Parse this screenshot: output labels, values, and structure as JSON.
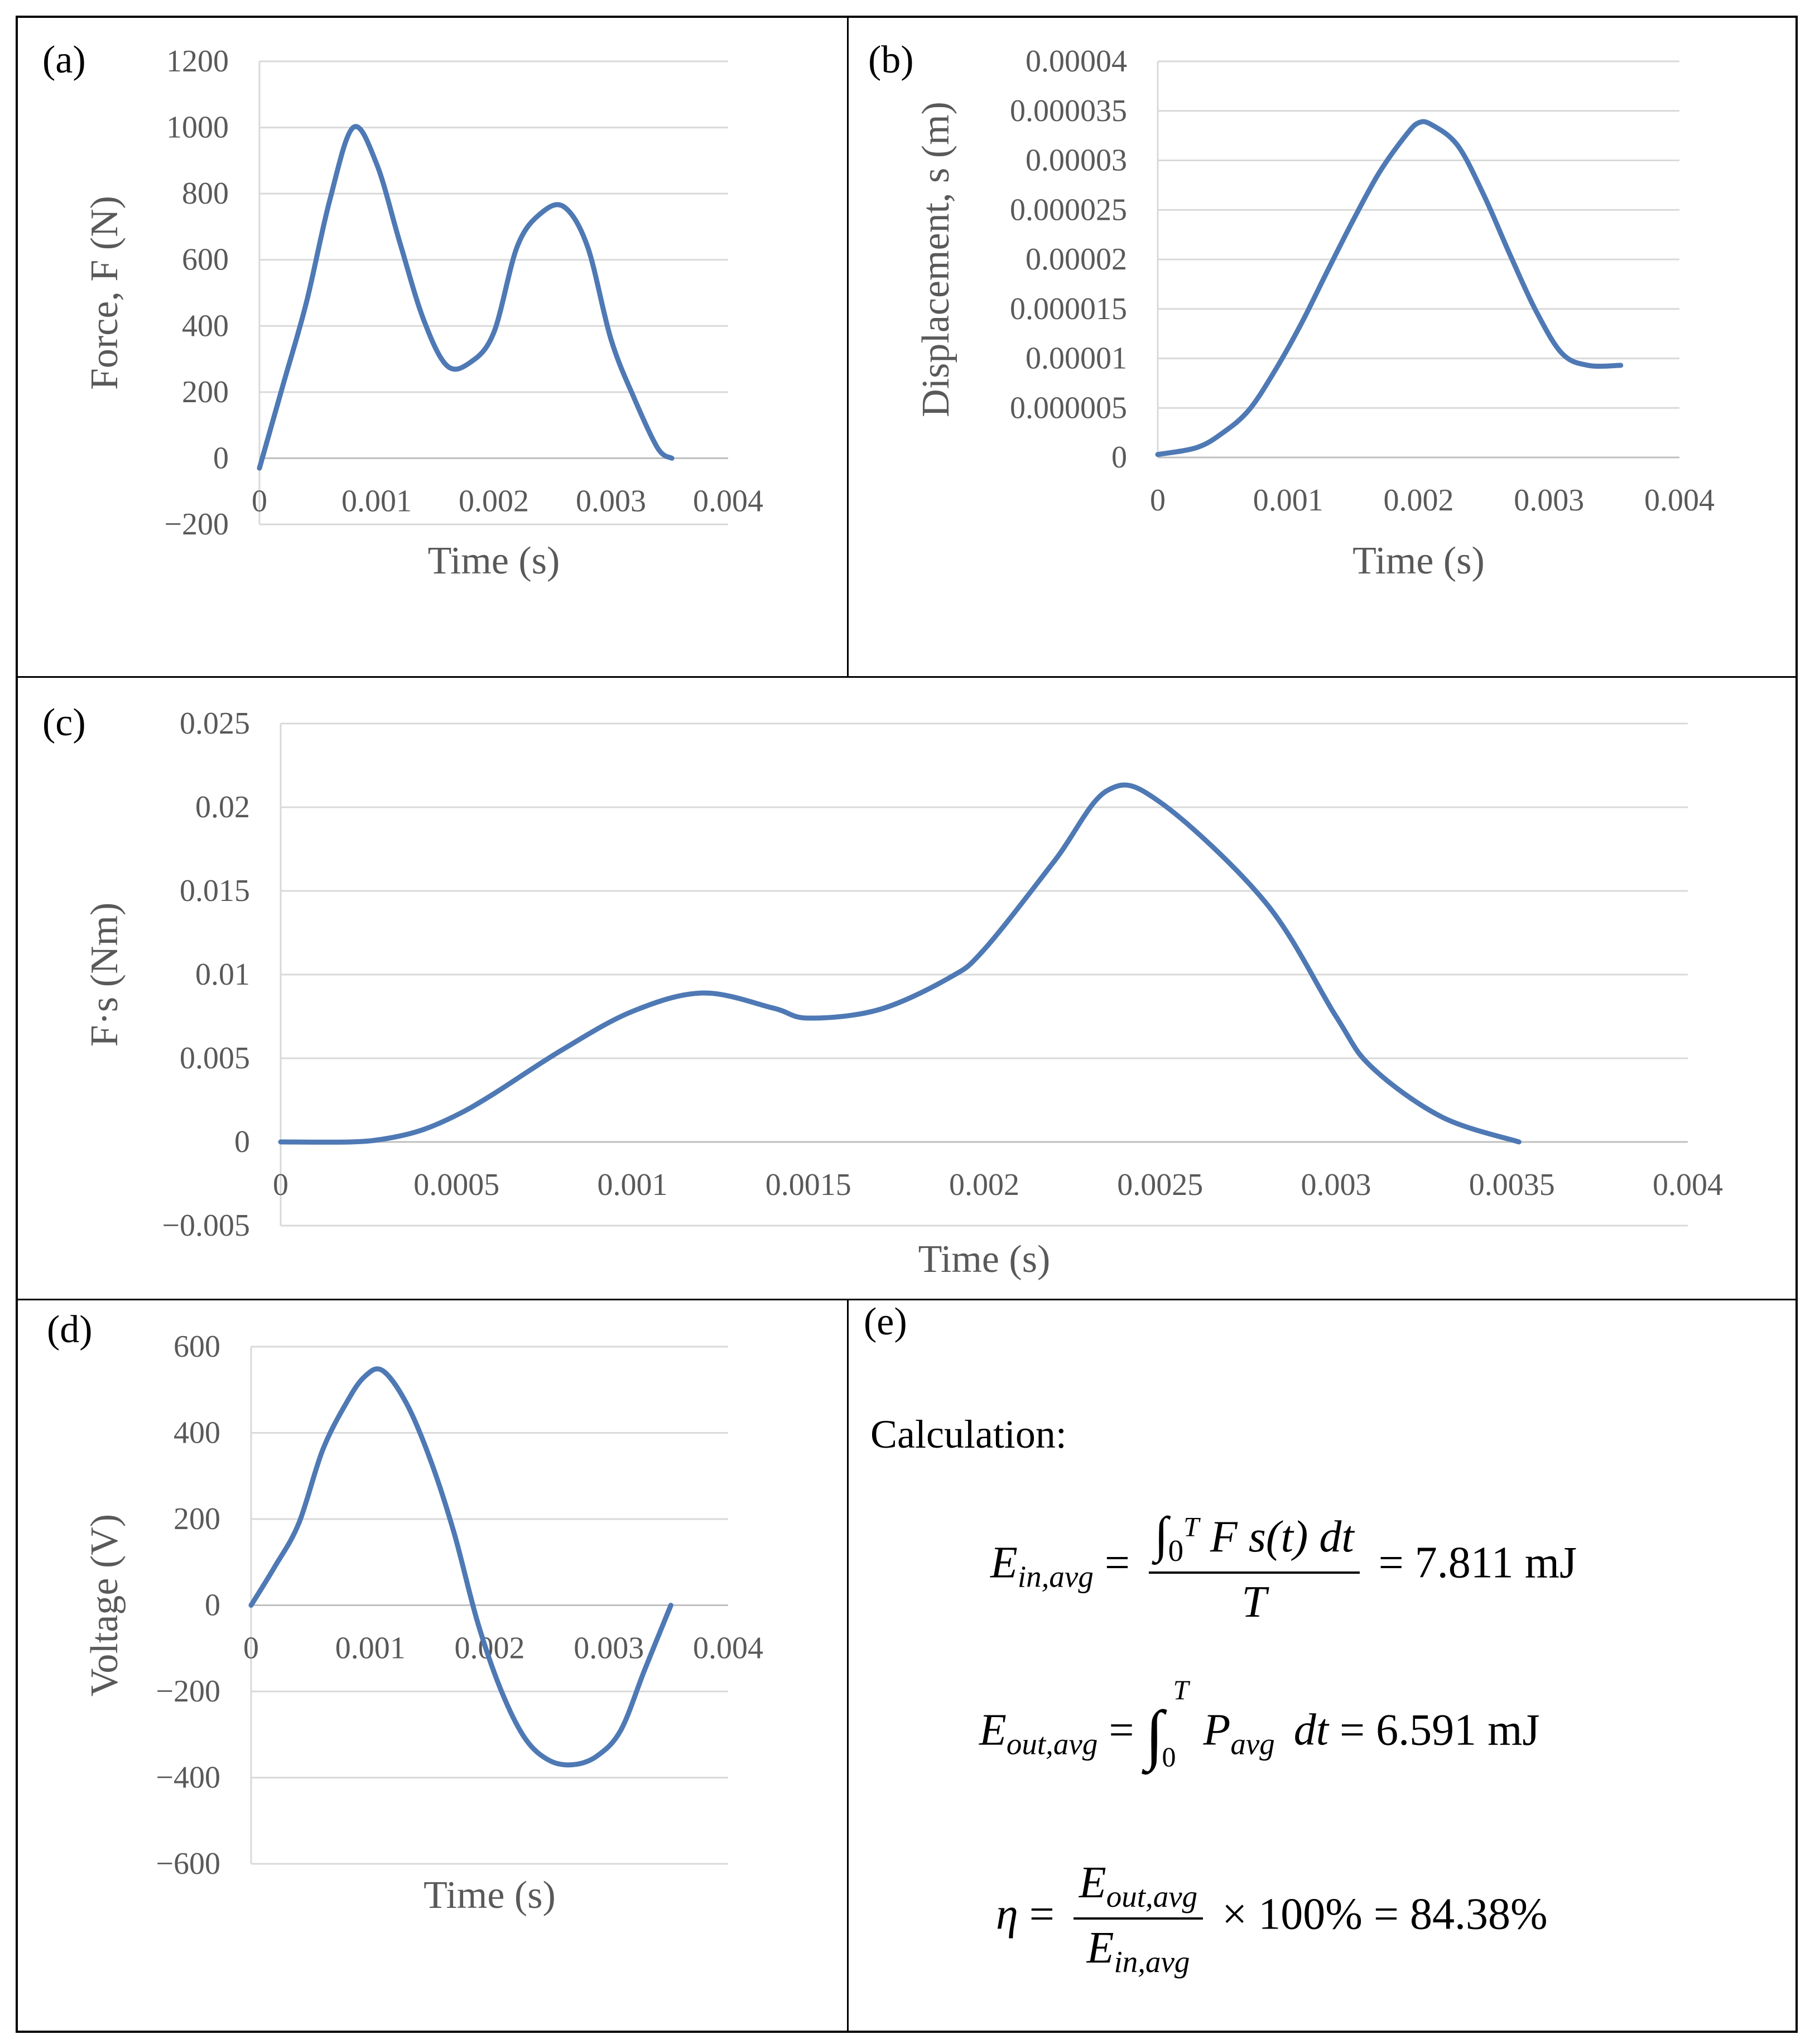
{
  "panels": {
    "a": "(a)",
    "b": "(b)",
    "c": "(c)",
    "d": "(d)",
    "e": "(e)"
  },
  "calculation": {
    "heading": "Calculation:",
    "ein_lhs": "E",
    "ein_sub": "in,avg",
    "ein_num": "F s(t) dt",
    "ein_den": "T",
    "ein_result": "= 7.811 mJ",
    "eout_lhs": "E",
    "eout_sub": "out,avg",
    "eout_integrand": "P",
    "eout_integrand_sub": "avg",
    "eout_dt": "dt",
    "eout_result": "= 6.591 mJ",
    "eta_lhs": "η",
    "eta_num": "E",
    "eta_num_sub": "out,avg",
    "eta_den": "E",
    "eta_den_sub": "in,avg",
    "eta_result": "× 100% = 84.38%",
    "limit_top": "T",
    "limit_bottom": "0"
  },
  "chart_data": [
    {
      "id": "a",
      "type": "line",
      "title": "",
      "xlabel": "Time (s)",
      "ylabel": "Force, F (N)",
      "xlim": [
        0,
        0.004
      ],
      "ylim": [
        -200,
        1200
      ],
      "xticks": [
        0,
        0.001,
        0.002,
        0.003,
        0.004
      ],
      "xtick_labels": [
        "0",
        "0.001",
        "0.002",
        "0.003",
        "0.004"
      ],
      "yticks": [
        -200,
        0,
        200,
        400,
        600,
        800,
        1000,
        1200
      ],
      "ytick_labels": [
        "−200",
        "0",
        "200",
        "400",
        "600",
        "800",
        "1000",
        "1200"
      ],
      "grid": true,
      "color": "#4e79b4",
      "series": [
        {
          "name": "Force",
          "x": [
            0,
            0.0002,
            0.0004,
            0.0006,
            0.0008,
            0.001,
            0.0012,
            0.0014,
            0.0016,
            0.0018,
            0.002,
            0.0022,
            0.0024,
            0.0026,
            0.0028,
            0.003,
            0.0032,
            0.0034,
            0.00352
          ],
          "y": [
            -30,
            220,
            470,
            780,
            1000,
            890,
            650,
            420,
            280,
            290,
            380,
            640,
            740,
            760,
            640,
            360,
            180,
            30,
            0
          ]
        }
      ]
    },
    {
      "id": "b",
      "type": "line",
      "title": "",
      "xlabel": "Time (s)",
      "ylabel": "Displacement, s (m)",
      "xlim": [
        0,
        0.004
      ],
      "ylim": [
        0,
        4e-05
      ],
      "xticks": [
        0,
        0.001,
        0.002,
        0.003,
        0.004
      ],
      "xtick_labels": [
        "0",
        "0.001",
        "0.002",
        "0.003",
        "0.004"
      ],
      "yticks": [
        0,
        5e-06,
        1e-05,
        1.5e-05,
        2e-05,
        2.5e-05,
        3e-05,
        3.5e-05,
        4e-05
      ],
      "ytick_labels": [
        "0",
        "0.000005",
        "0.00001",
        "0.000015",
        "0.00002",
        "0.000025",
        "0.00003",
        "0.000035",
        "0.00004"
      ],
      "grid": true,
      "color": "#4e79b4",
      "series": [
        {
          "name": "Displacement",
          "x": [
            0,
            0.0003,
            0.0005,
            0.0007,
            0.0009,
            0.0011,
            0.0013,
            0.0015,
            0.0017,
            0.0019,
            0.002,
            0.0021,
            0.0023,
            0.0025,
            0.0027,
            0.0029,
            0.0031,
            0.0033,
            0.00355
          ],
          "y": [
            3e-07,
            1e-06,
            2.5e-06,
            4.8e-06,
            8.8e-06,
            1.35e-05,
            1.88e-05,
            2.4e-05,
            2.88e-05,
            3.25e-05,
            3.38e-05,
            3.36e-05,
            3.15e-05,
            2.65e-05,
            2.05e-05,
            1.48e-05,
            1.05e-05,
            9.3e-06,
            9.3e-06
          ]
        }
      ]
    },
    {
      "id": "c",
      "type": "line",
      "title": "",
      "xlabel": "Time (s)",
      "ylabel": "F·s (Nm)",
      "xlim": [
        0,
        0.004
      ],
      "ylim": [
        -0.005,
        0.025
      ],
      "xticks": [
        0,
        0.0005,
        0.001,
        0.0015,
        0.002,
        0.0025,
        0.003,
        0.0035,
        0.004
      ],
      "xtick_labels": [
        "0",
        "0.0005",
        "0.001",
        "0.0015",
        "0.002",
        "0.0025",
        "0.003",
        "0.0035",
        "0.004"
      ],
      "yticks": [
        -0.005,
        0,
        0.005,
        0.01,
        0.015,
        0.02,
        0.025
      ],
      "ytick_labels": [
        "−0.005",
        "0",
        "0.005",
        "0.01",
        "0.015",
        "0.02",
        "0.025"
      ],
      "grid": true,
      "color": "#4e79b4",
      "series": [
        {
          "name": "F·s",
          "x": [
            0,
            0.0002,
            0.0003,
            0.0004,
            0.0005,
            0.0006,
            0.0008,
            0.001,
            0.0012,
            0.0014,
            0.0015,
            0.0017,
            0.0019,
            0.002,
            0.0022,
            0.00235,
            0.0025,
            0.0028,
            0.003,
            0.0031,
            0.0033,
            0.00352
          ],
          "y": [
            0,
            0,
            0.0002,
            0.0007,
            0.0016,
            0.0028,
            0.0055,
            0.0078,
            0.0089,
            0.008,
            0.0074,
            0.0079,
            0.0098,
            0.0115,
            0.0168,
            0.021,
            0.0203,
            0.0143,
            0.0075,
            0.0045,
            0.0015,
            0
          ]
        }
      ]
    },
    {
      "id": "d",
      "type": "line",
      "title": "",
      "xlabel": "Time (s)",
      "ylabel": "Voltage (V)",
      "xlim": [
        0,
        0.004
      ],
      "ylim": [
        -600,
        600
      ],
      "xticks": [
        0,
        0.001,
        0.002,
        0.003,
        0.004
      ],
      "xtick_labels": [
        "0",
        "0.001",
        "0.002",
        "0.003",
        "0.004"
      ],
      "yticks": [
        -600,
        -400,
        -200,
        0,
        200,
        400,
        600
      ],
      "ytick_labels": [
        "−600",
        "−400",
        "−200",
        "0",
        "200",
        "400",
        "600"
      ],
      "grid": true,
      "color": "#4e79b4",
      "series": [
        {
          "name": "Voltage",
          "x": [
            0,
            0.0002,
            0.0004,
            0.0006,
            0.0008,
            0.00095,
            0.0011,
            0.0013,
            0.0015,
            0.0017,
            0.0019,
            0.0021,
            0.0023,
            0.0025,
            0.0027,
            0.0029,
            0.0031,
            0.0033,
            0.00352
          ],
          "y": [
            0,
            90,
            190,
            360,
            470,
            530,
            545,
            470,
            340,
            170,
            -40,
            -200,
            -310,
            -360,
            -370,
            -350,
            -290,
            -150,
            0
          ]
        }
      ]
    }
  ]
}
